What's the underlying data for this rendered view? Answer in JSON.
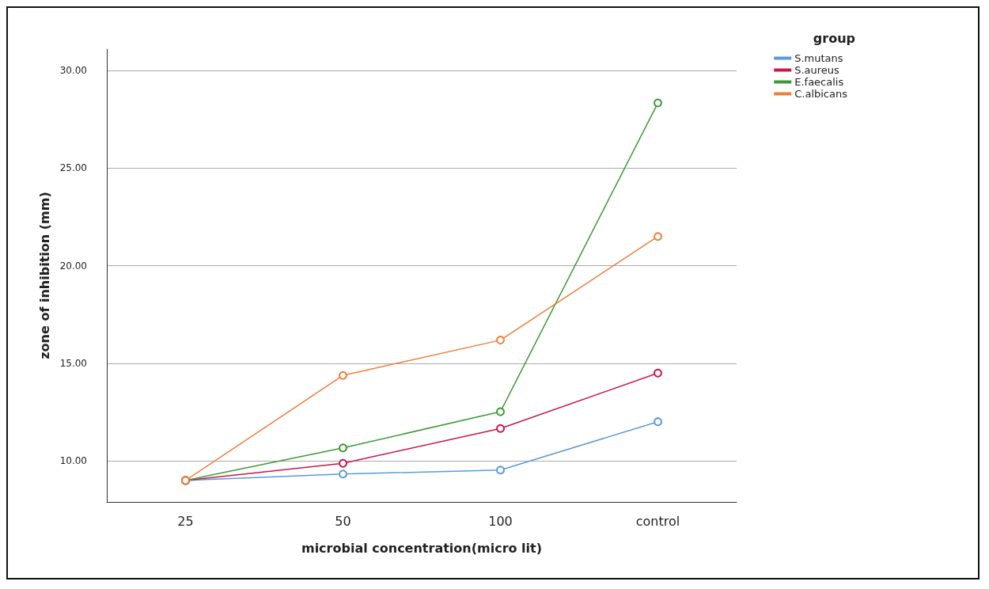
{
  "chart_data": {
    "type": "line",
    "xlabel": "microbial concentration(micro lit)",
    "ylabel": "zone of inhibition (mm)",
    "legend_title": "group",
    "categories": [
      "25",
      "50",
      "100",
      "control"
    ],
    "series": [
      {
        "name": "S.mutans",
        "color": "#5b9bd5",
        "values": [
          9.0,
          9.33,
          9.53,
          12.01
        ]
      },
      {
        "name": "S.aureus",
        "color": "#c8174a",
        "values": [
          9.0,
          9.88,
          11.66,
          14.5
        ]
      },
      {
        "name": "E.faecalis",
        "color": "#3b9a34",
        "values": [
          9.0,
          10.67,
          12.52,
          28.34
        ]
      },
      {
        "name": "C.albicans",
        "color": "#ee7d3a",
        "values": [
          9.0,
          14.38,
          16.19,
          21.5
        ]
      }
    ],
    "ylim": [
      7.9,
      31.1
    ],
    "yticks": [
      {
        "value": 10,
        "label": "10.00"
      },
      {
        "value": 15,
        "label": "15.00"
      },
      {
        "value": 20,
        "label": "20.00"
      },
      {
        "value": 25,
        "label": "25.00"
      },
      {
        "value": 30,
        "label": "30.00"
      }
    ],
    "grid": "y",
    "legend": "top right",
    "marker": "circle",
    "line_style": "solid"
  }
}
